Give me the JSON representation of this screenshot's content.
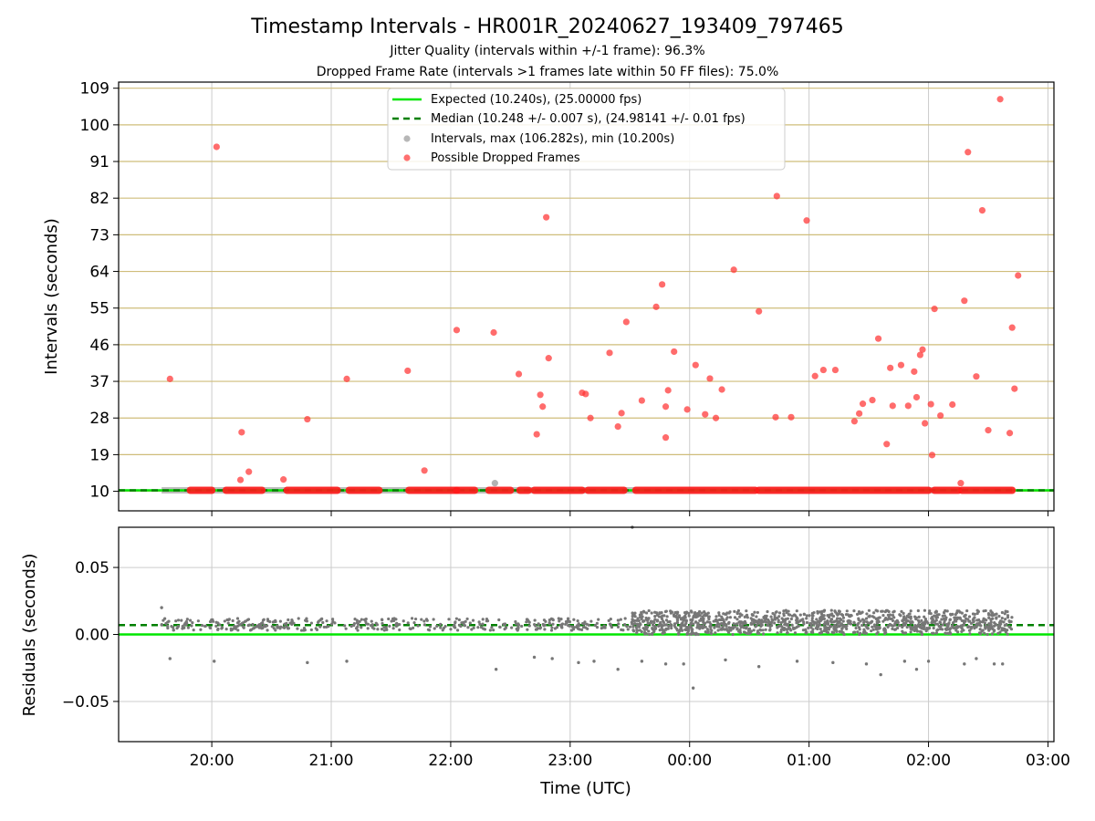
{
  "chart_data": [
    {
      "type": "scatter",
      "title": "Timestamp Intervals - HR001R_20240627_193409_797465",
      "subtitle_1": "Jitter Quality (intervals within +/-1 frame): 96.3%",
      "subtitle_2": "Dropped Frame Rate (intervals >1 frames late within 50 FF files): 75.0%",
      "ylabel": "Intervals (seconds)",
      "ylim": [
        5.2,
        110.5
      ],
      "yticks": [
        "10",
        "19",
        "28",
        "37",
        "46",
        "55",
        "64",
        "73",
        "82",
        "91",
        "100",
        "109"
      ],
      "ytick_values": [
        10,
        19,
        28,
        37,
        46,
        55,
        64,
        73,
        82,
        91,
        100,
        109
      ],
      "x_axis_unit": "hours since 00:00 UTC (negative = previous day)",
      "xlim": [
        -4.78,
        3.05
      ],
      "legend_placement": "upper-center",
      "legend": [
        {
          "label": "Expected (10.240s), (25.00000 fps)",
          "style": "solid-line",
          "color": "#00e600"
        },
        {
          "label": "Median (10.248 +/- 0.007 s), (24.98141 +/- 0.01 fps)",
          "style": "dashed-line",
          "color": "#008000"
        },
        {
          "label": "Intervals, max (106.282s), min (10.200s)",
          "style": "dot",
          "color": "#999999"
        },
        {
          "label": "Possible Dropped Frames",
          "style": "dot",
          "color": "#ff3333"
        }
      ],
      "expected": 10.24,
      "median": 10.248,
      "intervals_baseline": {
        "y": 10.24,
        "x_start": -4.42,
        "x_end": 2.7
      },
      "intervals_outliers": [
        [
          -1.63,
          12.0
        ]
      ],
      "dropped_frame_segments": [
        [
          -4.18,
          -4.0
        ],
        [
          -3.88,
          -3.58
        ],
        [
          -3.37,
          -2.95
        ],
        [
          -2.85,
          -2.6
        ],
        [
          -2.35,
          -1.95
        ],
        [
          -1.95,
          -1.8
        ],
        [
          -1.68,
          -1.5
        ],
        [
          -1.42,
          -1.35
        ],
        [
          -1.3,
          -0.9
        ],
        [
          -0.85,
          -0.55
        ],
        [
          -0.45,
          0.55
        ],
        [
          0.58,
          2.0
        ],
        [
          2.05,
          2.25
        ],
        [
          2.28,
          2.7
        ]
      ],
      "dropped_frames": [
        [
          -4.35,
          37.6
        ],
        [
          -3.96,
          94.6
        ],
        [
          -3.75,
          24.5
        ],
        [
          -3.76,
          12.8
        ],
        [
          -3.69,
          14.8
        ],
        [
          -3.4,
          12.9
        ],
        [
          -3.2,
          27.7
        ],
        [
          -2.87,
          37.6
        ],
        [
          -2.36,
          39.6
        ],
        [
          -2.22,
          15.1
        ],
        [
          -1.95,
          49.6
        ],
        [
          -1.64,
          49.0
        ],
        [
          -1.43,
          38.8
        ],
        [
          -1.28,
          24.0
        ],
        [
          -1.25,
          33.7
        ],
        [
          -1.23,
          30.8
        ],
        [
          -1.2,
          77.3
        ],
        [
          -1.18,
          42.7
        ],
        [
          -0.9,
          34.2
        ],
        [
          -0.87,
          33.9
        ],
        [
          -0.83,
          28.0
        ],
        [
          -0.67,
          44.0
        ],
        [
          -0.6,
          25.9
        ],
        [
          -0.57,
          29.2
        ],
        [
          -0.53,
          51.6
        ],
        [
          -0.4,
          32.3
        ],
        [
          -0.28,
          55.3
        ],
        [
          -0.23,
          60.8
        ],
        [
          -0.2,
          30.8
        ],
        [
          -0.18,
          34.8
        ],
        [
          -0.2,
          23.2
        ],
        [
          -0.13,
          44.3
        ],
        [
          -0.02,
          30.1
        ],
        [
          0.05,
          41.0
        ],
        [
          0.13,
          28.9
        ],
        [
          0.17,
          37.7
        ],
        [
          0.22,
          28.0
        ],
        [
          0.27,
          35.0
        ],
        [
          0.37,
          64.4
        ],
        [
          0.58,
          54.2
        ],
        [
          0.72,
          28.2
        ],
        [
          0.73,
          82.5
        ],
        [
          0.85,
          28.2
        ],
        [
          0.98,
          76.5
        ],
        [
          1.05,
          38.3
        ],
        [
          1.12,
          39.8
        ],
        [
          1.22,
          39.8
        ],
        [
          1.38,
          27.2
        ],
        [
          1.42,
          29.1
        ],
        [
          1.45,
          31.5
        ],
        [
          1.53,
          32.4
        ],
        [
          1.58,
          47.5
        ],
        [
          1.65,
          21.6
        ],
        [
          1.7,
          31.0
        ],
        [
          1.68,
          40.3
        ],
        [
          1.77,
          41.0
        ],
        [
          1.83,
          31.0
        ],
        [
          1.88,
          39.4
        ],
        [
          1.93,
          43.5
        ],
        [
          1.95,
          44.8
        ],
        [
          1.9,
          33.1
        ],
        [
          1.97,
          26.7
        ],
        [
          2.02,
          31.4
        ],
        [
          2.03,
          18.9
        ],
        [
          2.05,
          54.8
        ],
        [
          2.1,
          28.6
        ],
        [
          2.2,
          31.3
        ],
        [
          2.27,
          12.0
        ],
        [
          2.3,
          56.8
        ],
        [
          2.33,
          93.3
        ],
        [
          2.4,
          38.2
        ],
        [
          2.45,
          79.0
        ],
        [
          2.5,
          25.0
        ],
        [
          2.6,
          106.3
        ],
        [
          2.68,
          24.3
        ],
        [
          2.7,
          50.2
        ],
        [
          2.72,
          35.2
        ],
        [
          2.75,
          63.0
        ]
      ]
    },
    {
      "type": "scatter",
      "xlabel": "Time (UTC)",
      "ylabel": "Residuals (seconds)",
      "ylim": [
        -0.08,
        0.08
      ],
      "yticks": [
        "0.05",
        "0.00",
        "−0.05"
      ],
      "ytick_values": [
        0.05,
        0.0,
        -0.05
      ],
      "xticks": [
        "20:00",
        "21:00",
        "22:00",
        "23:00",
        "00:00",
        "01:00",
        "02:00",
        "03:00"
      ],
      "xtick_values": [
        -4.0,
        -3.0,
        -2.0,
        -1.0,
        0.0,
        1.0,
        2.0,
        3.0
      ],
      "xlim": [
        -4.78,
        3.05
      ],
      "expected_residual": 0.0,
      "median_residual": 0.007,
      "residual_dense_band": {
        "x_start": -4.42,
        "x_end": 2.7,
        "low": 0.003,
        "high": 0.012
      },
      "residual_wide_band": {
        "x_start": -0.5,
        "x_end": 2.7,
        "low": 0.0,
        "high": 0.018
      },
      "residual_outliers": [
        [
          -4.42,
          0.02
        ],
        [
          -4.35,
          -0.018
        ],
        [
          -3.98,
          -0.02
        ],
        [
          -3.2,
          -0.021
        ],
        [
          -2.87,
          -0.02
        ],
        [
          -1.62,
          -0.026
        ],
        [
          -1.15,
          -0.018
        ],
        [
          -1.3,
          -0.017
        ],
        [
          -0.93,
          -0.021
        ],
        [
          -0.8,
          -0.02
        ],
        [
          -0.6,
          -0.026
        ],
        [
          -0.4,
          -0.02
        ],
        [
          -0.2,
          -0.022
        ],
        [
          -0.05,
          -0.022
        ],
        [
          0.03,
          -0.04
        ],
        [
          0.3,
          -0.019
        ],
        [
          0.58,
          -0.024
        ],
        [
          0.9,
          -0.02
        ],
        [
          1.2,
          -0.021
        ],
        [
          1.48,
          -0.022
        ],
        [
          1.6,
          -0.03
        ],
        [
          1.8,
          -0.02
        ],
        [
          1.9,
          -0.026
        ],
        [
          2.0,
          -0.02
        ],
        [
          2.3,
          -0.022
        ],
        [
          2.4,
          -0.018
        ],
        [
          2.55,
          -0.022
        ],
        [
          2.62,
          -0.022
        ],
        [
          -0.48,
          0.08
        ]
      ]
    }
  ]
}
